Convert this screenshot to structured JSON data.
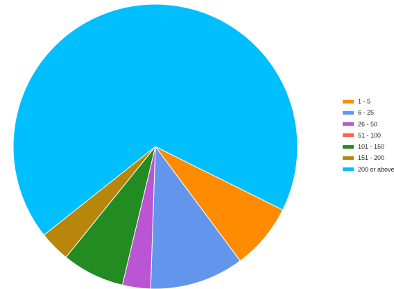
{
  "chart_data": {
    "type": "pie",
    "title": "",
    "slices": [
      {
        "label": "1 - 5",
        "value": 7.5,
        "color": "#FF8C00"
      },
      {
        "label": "6 - 25",
        "value": 10.7,
        "color": "#6495ED"
      },
      {
        "label": "26 - 50",
        "value": 3.2,
        "color": "#BA55D3"
      },
      {
        "label": "51 - 100",
        "value": 0,
        "color": "#FF6347"
      },
      {
        "label": "101 - 150",
        "value": 7.1,
        "color": "#228B22"
      },
      {
        "label": "151 - 200",
        "value": 3.5,
        "color": "#B8860B"
      },
      {
        "label": "200 or above",
        "value": 68.0,
        "color": "#00BFFF"
      }
    ],
    "legend_position": "right"
  }
}
